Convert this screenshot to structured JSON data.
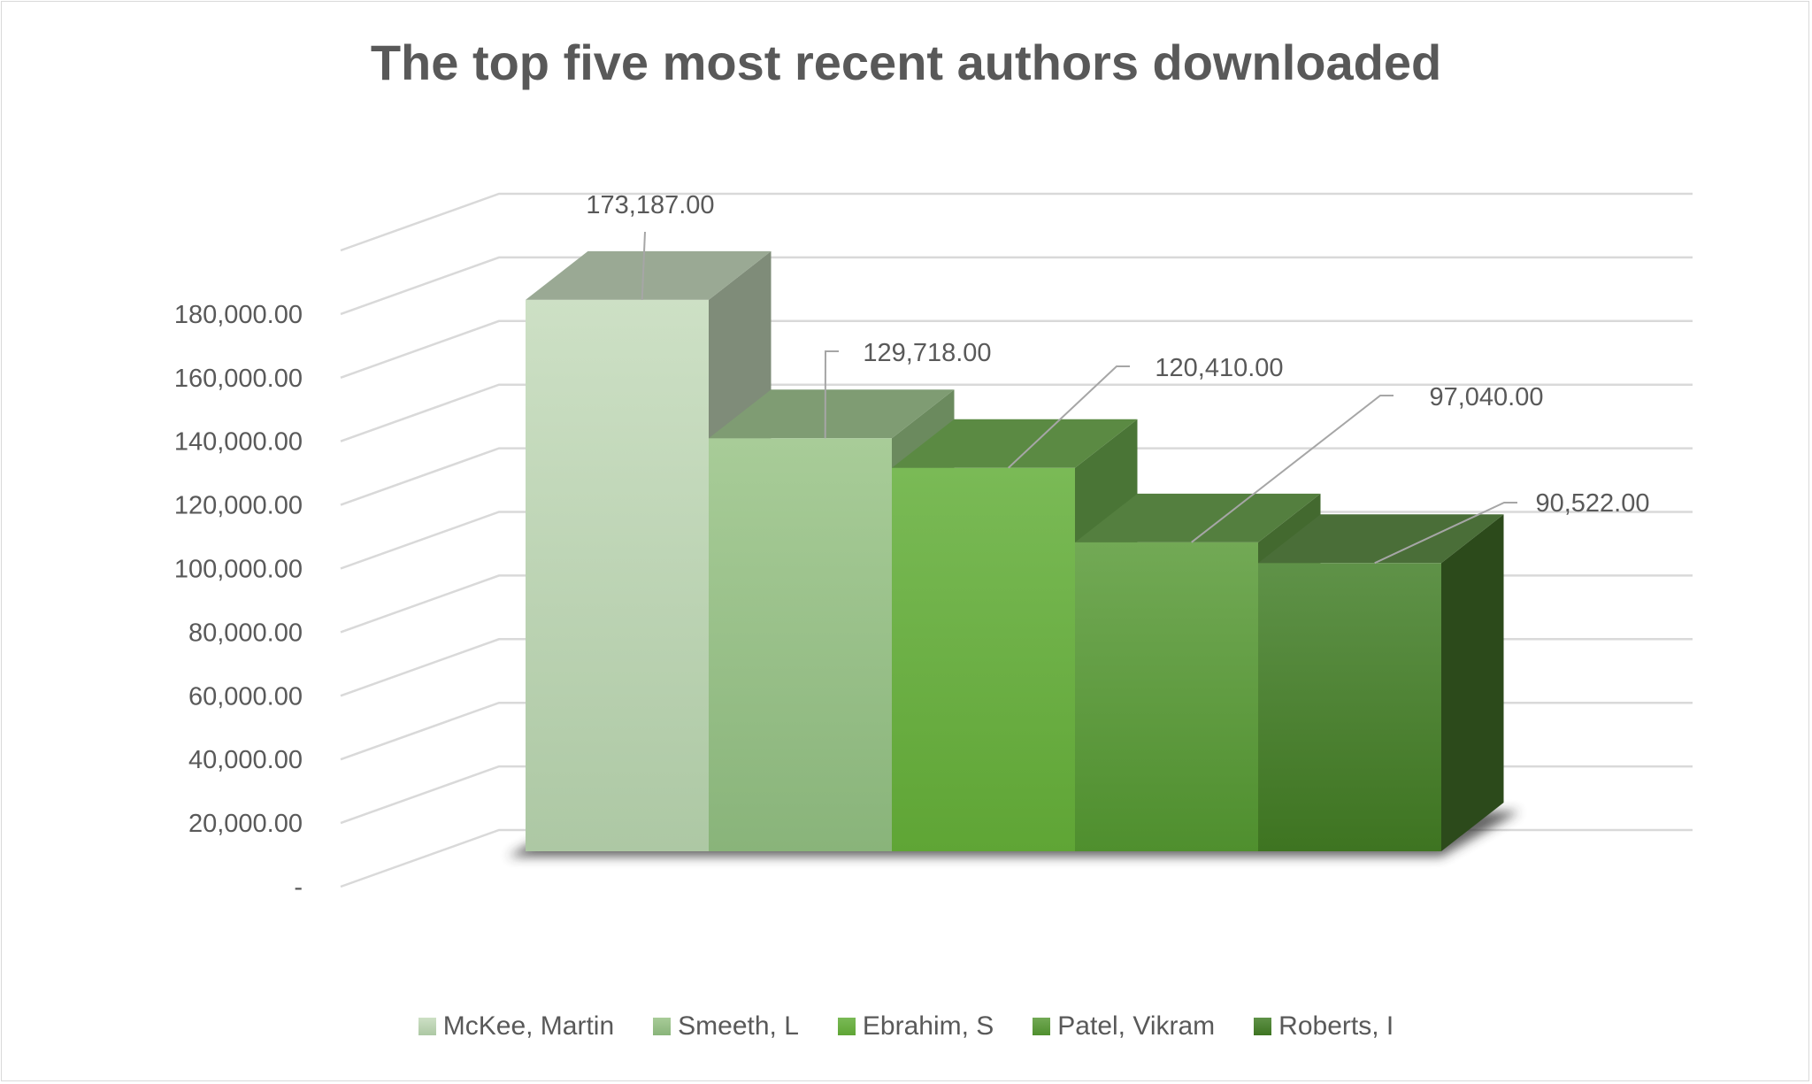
{
  "chart_data": {
    "type": "bar",
    "style": "3d-column",
    "title": "The top five most recent authors downloaded",
    "categories": [
      "McKee, Martin",
      "Smeeth, L",
      "Ebrahim, S",
      "Patel, Vikram",
      "Roberts, I"
    ],
    "series": [
      {
        "name": "McKee, Martin",
        "value": 173187,
        "label": "173,187.00",
        "color": "#c5dcbc"
      },
      {
        "name": "Smeeth, L",
        "value": 129718,
        "label": "129,718.00",
        "color": "#9fc58e"
      },
      {
        "name": "Ebrahim, S",
        "value": 120410,
        "label": "120,410.00",
        "color": "#6db444"
      },
      {
        "name": "Patel, Vikram",
        "value": 97040,
        "label": "97,040.00",
        "color": "#5f9c3c"
      },
      {
        "name": "Roberts, I",
        "value": 90522,
        "label": "90,522.00",
        "color": "#4c8430"
      }
    ],
    "y_ticks": [
      {
        "value": 0,
        "label": "-"
      },
      {
        "value": 20000,
        "label": "20,000.00"
      },
      {
        "value": 40000,
        "label": "40,000.00"
      },
      {
        "value": 60000,
        "label": "60,000.00"
      },
      {
        "value": 80000,
        "label": "80,000.00"
      },
      {
        "value": 100000,
        "label": "100,000.00"
      },
      {
        "value": 120000,
        "label": "120,000.00"
      },
      {
        "value": 140000,
        "label": "140,000.00"
      },
      {
        "value": 160000,
        "label": "160,000.00"
      },
      {
        "value": 180000,
        "label": "180,000.00"
      }
    ],
    "ylim": [
      0,
      200000
    ],
    "grid": true,
    "legend": "bottom",
    "xlabel": "",
    "ylabel": ""
  }
}
